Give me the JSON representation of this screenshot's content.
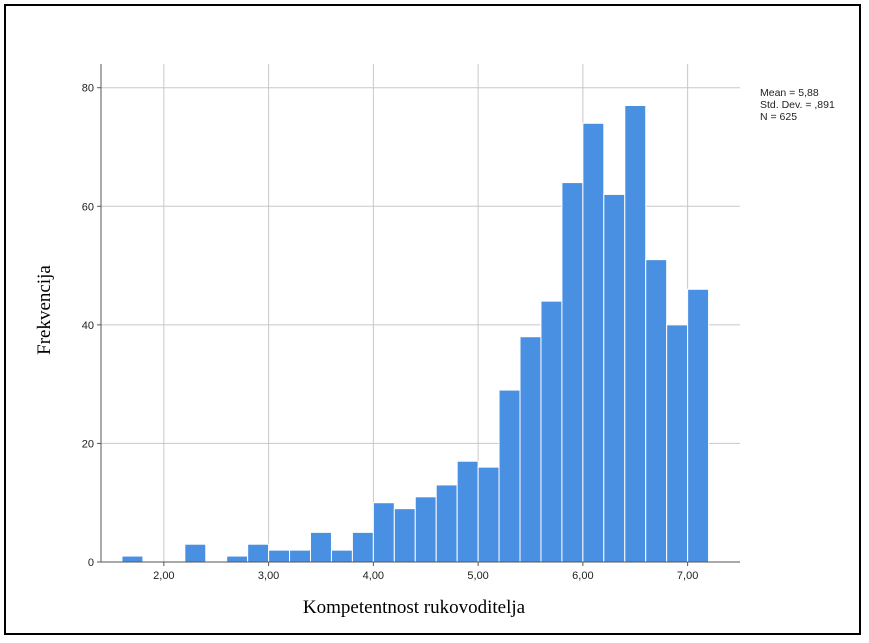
{
  "chart_data": {
    "type": "bar",
    "subtype": "histogram",
    "xlabel": "Kompetentnost rukovoditelja",
    "ylabel": "Frekvencija",
    "x_tick_labels": [
      "2,00",
      "3,00",
      "4,00",
      "5,00",
      "6,00",
      "7,00"
    ],
    "x_tick_values": [
      2,
      3,
      4,
      5,
      6,
      7
    ],
    "y_tick_labels": [
      "0",
      "20",
      "40",
      "60",
      "80"
    ],
    "y_tick_values": [
      0,
      20,
      40,
      60,
      80
    ],
    "xlim": [
      1.4,
      7.5
    ],
    "ylim": [
      0,
      84
    ],
    "bin_width": 0.2,
    "bins": [
      {
        "start": 1.6,
        "value": 1
      },
      {
        "start": 1.8,
        "value": 0
      },
      {
        "start": 2.0,
        "value": 0
      },
      {
        "start": 2.2,
        "value": 3
      },
      {
        "start": 2.4,
        "value": 0
      },
      {
        "start": 2.6,
        "value": 1
      },
      {
        "start": 2.8,
        "value": 3
      },
      {
        "start": 3.0,
        "value": 2
      },
      {
        "start": 3.2,
        "value": 2
      },
      {
        "start": 3.4,
        "value": 5
      },
      {
        "start": 3.6,
        "value": 2
      },
      {
        "start": 3.8,
        "value": 5
      },
      {
        "start": 4.0,
        "value": 10
      },
      {
        "start": 4.2,
        "value": 9
      },
      {
        "start": 4.4,
        "value": 11
      },
      {
        "start": 4.6,
        "value": 13
      },
      {
        "start": 4.8,
        "value": 17
      },
      {
        "start": 5.0,
        "value": 16
      },
      {
        "start": 5.2,
        "value": 29
      },
      {
        "start": 5.4,
        "value": 38
      },
      {
        "start": 5.6,
        "value": 44
      },
      {
        "start": 5.8,
        "value": 64
      },
      {
        "start": 6.0,
        "value": 74
      },
      {
        "start": 6.2,
        "value": 62
      },
      {
        "start": 6.4,
        "value": 77
      },
      {
        "start": 6.6,
        "value": 51
      },
      {
        "start": 6.8,
        "value": 40
      },
      {
        "start": 7.0,
        "value": 46
      }
    ],
    "grid": true,
    "stats": {
      "mean": "Mean = 5,88",
      "std_dev": "Std. Dev. = ,891",
      "n": "N = 625"
    },
    "colors": {
      "bar_fill": "#4a90e2",
      "bar_edge": "#ffffff",
      "grid": "#c8c8c8",
      "axis": "#555555"
    }
  }
}
